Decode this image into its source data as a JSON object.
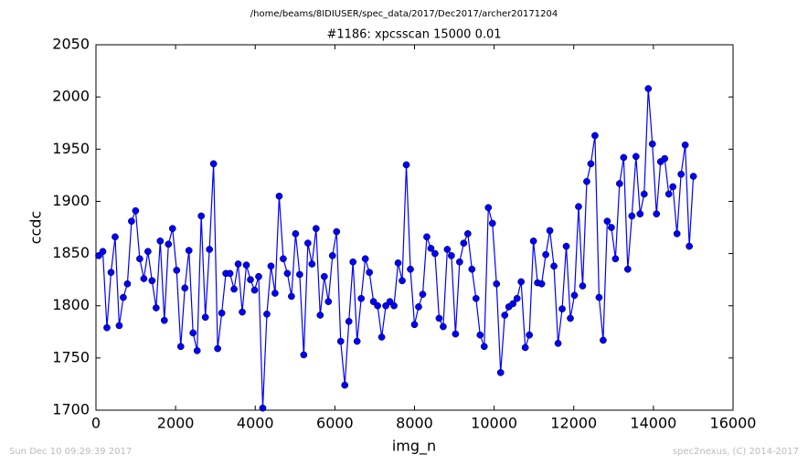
{
  "chart_data": {
    "type": "line",
    "suptitle": "/home/beams/8IDIUSER/spec_data/2017/Dec2017/archer20171204",
    "title": "#1186: xpcsscan 15000 0.01",
    "xlabel": "img_n",
    "ylabel": "ccdc",
    "footer_left": "Sun Dec 10 09:29:39 2017",
    "footer_right": "spec2nexus, (C) 2014-2017",
    "xlim": [
      0,
      16000
    ],
    "xticks": [
      0,
      2000,
      4000,
      6000,
      8000,
      10000,
      12000,
      14000,
      16000
    ],
    "ylim": [
      1700,
      2050
    ],
    "yticks": [
      1700,
      1750,
      1800,
      1850,
      1900,
      1950,
      2000,
      2050
    ],
    "grid": false,
    "x": [
      69,
      172,
      275,
      378,
      481,
      584,
      687,
      790,
      893,
      996,
      1099,
      1202,
      1305,
      1408,
      1511,
      1614,
      1717,
      1820,
      1923,
      2026,
      2129,
      2232,
      2335,
      2438,
      2541,
      2644,
      2747,
      2850,
      2953,
      3056,
      3159,
      3262,
      3365,
      3468,
      3571,
      3674,
      3777,
      3880,
      3983,
      4086,
      4189,
      4292,
      4395,
      4498,
      4601,
      4704,
      4807,
      4910,
      5013,
      5116,
      5219,
      5322,
      5425,
      5528,
      5631,
      5734,
      5837,
      5940,
      6043,
      6146,
      6249,
      6352,
      6455,
      6558,
      6661,
      6764,
      6867,
      6970,
      7073,
      7176,
      7279,
      7382,
      7485,
      7588,
      7691,
      7794,
      7897,
      8000,
      8103,
      8206,
      8309,
      8412,
      8515,
      8618,
      8721,
      8824,
      8927,
      9030,
      9133,
      9236,
      9339,
      9442,
      9545,
      9648,
      9751,
      9854,
      9957,
      10060,
      10163,
      10266,
      10369,
      10472,
      10575,
      10678,
      10781,
      10884,
      10987,
      11090,
      11193,
      11296,
      11399,
      11502,
      11605,
      11708,
      11811,
      11914,
      12017,
      12120,
      12223,
      12326,
      12429,
      12532,
      12635,
      12738,
      12841,
      12944,
      13047,
      13150,
      13253,
      13356,
      13459,
      13562,
      13665,
      13768,
      13871,
      13974,
      14077,
      14180,
      14283,
      14386,
      14489,
      14592,
      14695,
      14798,
      14901,
      15004
    ],
    "series": [
      {
        "color": "#0000ff",
        "values": [
          1848,
          1852,
          1779,
          1832,
          1866,
          1781,
          1808,
          1821,
          1881,
          1891,
          1845,
          1826,
          1852,
          1824,
          1798,
          1862,
          1786,
          1859,
          1874,
          1834,
          1761,
          1817,
          1853,
          1774,
          1757,
          1886,
          1789,
          1854,
          1936,
          1759,
          1793,
          1831,
          1831,
          1816,
          1840,
          1794,
          1839,
          1825,
          1815,
          1828,
          1702,
          1792,
          1838,
          1812,
          1905,
          1845,
          1831,
          1809,
          1869,
          1830,
          1753,
          1860,
          1840,
          1874,
          1791,
          1828,
          1804,
          1848,
          1871,
          1766,
          1724,
          1785,
          1842,
          1766,
          1807,
          1845,
          1832,
          1804,
          1800,
          1770,
          1800,
          1804,
          1800,
          1841,
          1824,
          1935,
          1835,
          1782,
          1799,
          1811,
          1866,
          1855,
          1850,
          1788,
          1780,
          1854,
          1848,
          1773,
          1842,
          1860,
          1869,
          1835,
          1807,
          1772,
          1761,
          1894,
          1879,
          1821,
          1736,
          1791,
          1799,
          1802,
          1807,
          1823,
          1760,
          1772,
          1862,
          1822,
          1821,
          1849,
          1872,
          1838,
          1764,
          1797,
          1857,
          1788,
          1810,
          1895,
          1819,
          1919,
          1936,
          1963,
          1808,
          1767,
          1881,
          1875,
          1845,
          1917,
          1942,
          1835,
          1886,
          1943,
          1888,
          1907,
          2008,
          1955,
          1888,
          1938,
          1941,
          1907,
          1914,
          1869,
          1926,
          1954,
          1857,
          1924
        ]
      }
    ]
  }
}
